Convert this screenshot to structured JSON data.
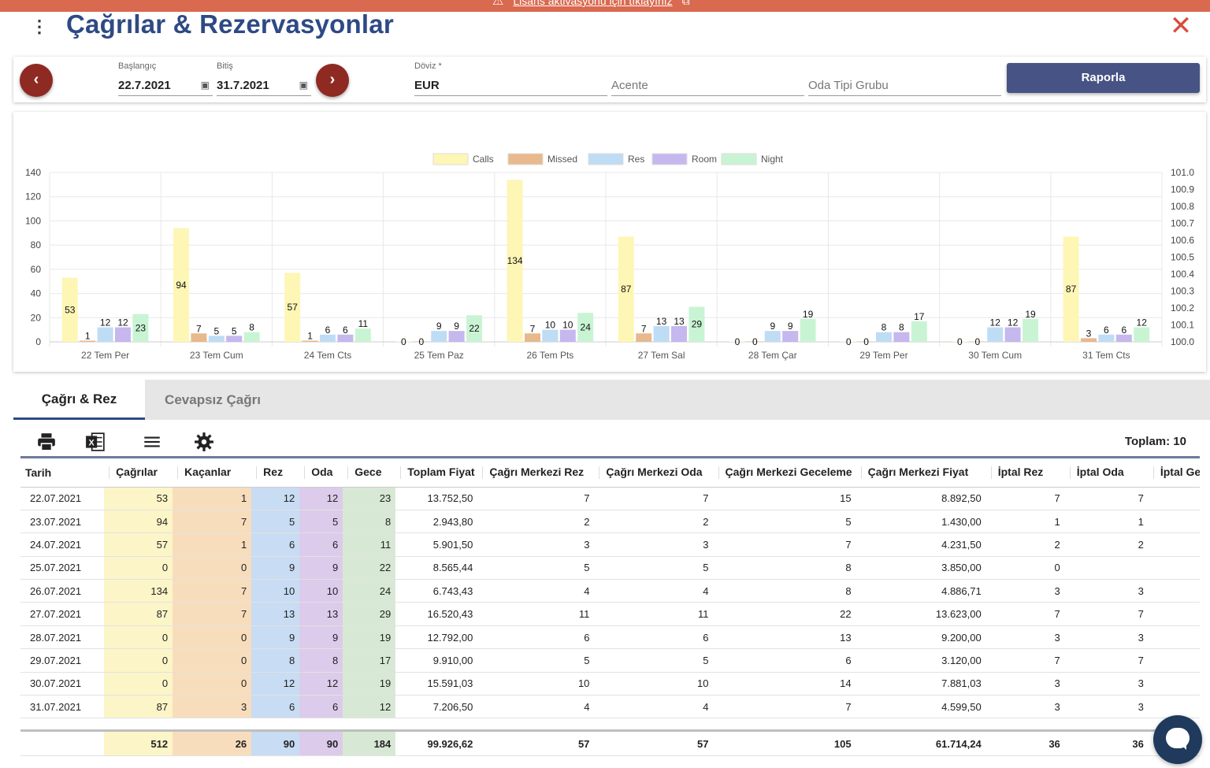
{
  "banner": {
    "text": "Lisans aktivasyonu için tıklayınız"
  },
  "header": {
    "title": "Çağrılar & Rezervasyonlar"
  },
  "filters": {
    "start_label": "Başlangıç",
    "start_value": "22.7.2021",
    "end_label": "Bitiş",
    "end_value": "31.7.2021",
    "currency_label": "Döviz *",
    "currency_value": "EUR",
    "agency_placeholder": "Acente",
    "room_type_placeholder": "Oda Tipi Grubu",
    "report_button": "Raporla"
  },
  "chart_data": {
    "type": "bar",
    "categories": [
      "22 Tem Per",
      "23 Tem Cum",
      "24 Tem Cts",
      "25 Tem Paz",
      "26 Tem Pts",
      "27 Tem Sal",
      "28 Tem Çar",
      "29 Tem Per",
      "30 Tem Cum",
      "31 Tem Cts"
    ],
    "series": [
      {
        "name": "Calls",
        "color": "#fdf6b5",
        "values": [
          53,
          94,
          57,
          0,
          134,
          87,
          0,
          0,
          0,
          87
        ]
      },
      {
        "name": "Missed",
        "color": "#e8b98c",
        "values": [
          1,
          7,
          1,
          0,
          7,
          7,
          0,
          0,
          0,
          3
        ]
      },
      {
        "name": "Res",
        "color": "#bfdcf5",
        "values": [
          12,
          5,
          6,
          9,
          10,
          13,
          9,
          8,
          12,
          6
        ]
      },
      {
        "name": "Room",
        "color": "#c6b7ee",
        "values": [
          12,
          5,
          6,
          9,
          10,
          13,
          9,
          8,
          12,
          6
        ]
      },
      {
        "name": "Night",
        "color": "#c9f4d4",
        "values": [
          23,
          8,
          11,
          22,
          24,
          29,
          19,
          17,
          19,
          12
        ]
      }
    ],
    "ylim": [
      0,
      140
    ],
    "yticks": [
      "0",
      "20",
      "40",
      "60",
      "80",
      "100",
      "120",
      "140"
    ],
    "y2ticks": [
      "100.0",
      "100.1",
      "100.2",
      "100.3",
      "100.4",
      "100.5",
      "100.6",
      "100.7",
      "100.8",
      "100.9",
      "101.0"
    ],
    "legend_position": "top-center",
    "grid": true,
    "data_labels": true
  },
  "tabs": [
    {
      "label": "Çağrı & Rez",
      "active": true
    },
    {
      "label": "Cevapsız Çağrı",
      "active": false
    }
  ],
  "toolbar": {
    "icons": [
      "print-icon",
      "excel-icon",
      "list-icon",
      "gear-icon"
    ],
    "total_text": "Toplam: 10"
  },
  "table": {
    "columns": [
      "Tarih",
      "Çağrılar",
      "Kaçanlar",
      "Rez",
      "Oda",
      "Gece",
      "Toplam Fiyat",
      "Çağrı Merkezi Rez",
      "Çağrı Merkezi Oda",
      "Çağrı Merkezi Geceleme",
      "Çağrı Merkezi Fiyat",
      "İptal Rez",
      "İptal Oda",
      "İptal Gece"
    ],
    "rows": [
      [
        "22.07.2021",
        "53",
        "1",
        "12",
        "12",
        "23",
        "13.752,50",
        "7",
        "7",
        "15",
        "8.892,50",
        "7",
        "7",
        ""
      ],
      [
        "23.07.2021",
        "94",
        "7",
        "5",
        "5",
        "8",
        "2.943,80",
        "2",
        "2",
        "5",
        "1.430,00",
        "1",
        "1",
        ""
      ],
      [
        "24.07.2021",
        "57",
        "1",
        "6",
        "6",
        "11",
        "5.901,50",
        "3",
        "3",
        "7",
        "4.231,50",
        "2",
        "2",
        ""
      ],
      [
        "25.07.2021",
        "0",
        "0",
        "9",
        "9",
        "22",
        "8.565,44",
        "5",
        "5",
        "8",
        "3.850,00",
        "0",
        "",
        ""
      ],
      [
        "26.07.2021",
        "134",
        "7",
        "10",
        "10",
        "24",
        "6.743,43",
        "4",
        "4",
        "8",
        "4.886,71",
        "3",
        "3",
        ""
      ],
      [
        "27.07.2021",
        "87",
        "7",
        "13",
        "13",
        "29",
        "16.520,43",
        "11",
        "11",
        "22",
        "13.623,00",
        "7",
        "7",
        ""
      ],
      [
        "28.07.2021",
        "0",
        "0",
        "9",
        "9",
        "19",
        "12.792,00",
        "6",
        "6",
        "13",
        "9.200,00",
        "3",
        "3",
        ""
      ],
      [
        "29.07.2021",
        "0",
        "0",
        "8",
        "8",
        "17",
        "9.910,00",
        "5",
        "5",
        "6",
        "3.120,00",
        "7",
        "7",
        ""
      ],
      [
        "30.07.2021",
        "0",
        "0",
        "12",
        "12",
        "19",
        "15.591,03",
        "10",
        "10",
        "14",
        "7.881,03",
        "3",
        "3",
        ""
      ],
      [
        "31.07.2021",
        "87",
        "3",
        "6",
        "6",
        "12",
        "7.206,50",
        "4",
        "4",
        "7",
        "4.599,50",
        "3",
        "3",
        ""
      ]
    ],
    "totals": [
      "",
      "512",
      "26",
      "90",
      "90",
      "184",
      "99.926,62",
      "57",
      "57",
      "105",
      "61.714,24",
      "36",
      "36",
      ""
    ]
  }
}
